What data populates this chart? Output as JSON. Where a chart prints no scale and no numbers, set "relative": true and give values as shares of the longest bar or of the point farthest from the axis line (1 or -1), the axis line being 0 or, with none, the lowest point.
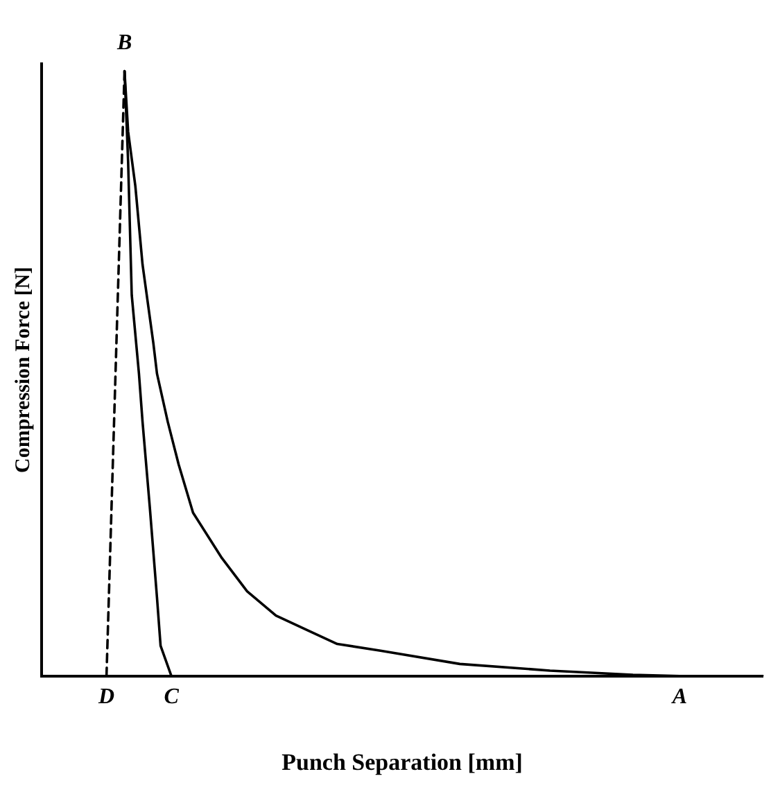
{
  "chart_data": {
    "type": "line",
    "relative": true,
    "xlabel": "Punch Separation [mm]",
    "ylabel": "Compression Force [N]",
    "tick_labels": "x",
    "grid": false,
    "legend": false,
    "marker": "none",
    "categories": [
      null,
      null,
      null,
      null,
      null,
      null,
      null,
      null,
      null,
      null,
      null,
      null,
      null,
      null,
      null,
      null,
      null,
      null,
      "D",
      null,
      null,
      null,
      null,
      null,
      null,
      null,
      null,
      null,
      null,
      null,
      null,
      null,
      null,
      null,
      null,
      null,
      "C",
      null,
      null,
      null,
      null,
      null,
      null,
      null,
      null,
      null,
      null,
      null,
      null,
      null,
      null,
      null,
      null,
      null,
      null,
      null,
      null,
      null,
      null,
      null,
      null,
      null,
      null,
      null,
      null,
      null,
      null,
      null,
      null,
      null,
      null,
      null,
      null,
      null,
      null,
      null,
      null,
      null,
      null,
      null,
      null,
      null,
      null,
      null,
      null,
      null,
      null,
      null,
      null,
      null,
      null,
      null,
      null,
      null,
      null,
      null,
      null,
      null,
      null,
      null,
      null,
      null,
      null,
      null,
      null,
      null,
      null,
      null,
      null,
      null,
      null,
      null,
      null,
      null,
      null,
      null,
      null,
      null,
      null,
      null,
      null,
      null,
      null,
      null,
      null,
      null,
      null,
      null,
      null,
      null,
      null,
      null,
      null,
      null,
      null,
      null,
      null,
      null,
      null,
      null,
      null,
      null,
      null,
      null,
      null,
      null,
      null,
      null,
      null,
      null,
      null,
      null,
      null,
      null,
      null,
      null,
      null,
      null,
      null,
      null,
      null,
      null,
      null,
      null,
      null,
      null,
      null,
      null,
      null,
      null,
      null,
      null,
      null,
      null,
      null,
      null,
      null,
      "A",
      null,
      null,
      null,
      null,
      null,
      null,
      null,
      null,
      null,
      null,
      null,
      null,
      null,
      null,
      null,
      null,
      null,
      null,
      null,
      null,
      null,
      null,
      null
    ],
    "series": [
      {
        "color": "#000000",
        "line_style": "solid",
        "values": [
          null,
          null,
          null,
          null,
          null,
          null,
          null,
          null,
          null,
          null,
          null,
          null,
          null,
          null,
          null,
          null,
          null,
          null,
          null,
          null,
          null,
          null,
          null,
          1,
          0.9,
          null,
          0.81,
          null,
          0.68,
          null,
          null,
          0.55,
          0.5,
          null,
          null,
          0.42,
          null,
          null,
          0.35,
          null,
          null,
          null,
          0.27,
          null,
          null,
          null,
          null,
          null,
          null,
          null,
          0.195,
          null,
          null,
          null,
          null,
          null,
          null,
          0.14,
          null,
          null,
          null,
          null,
          null,
          null,
          null,
          0.1,
          null,
          null,
          null,
          null,
          null,
          null,
          null,
          null,
          0.075,
          null,
          null,
          null,
          null,
          null,
          null,
          null,
          0.053,
          null,
          null,
          null,
          null,
          null,
          null,
          null,
          null,
          null,
          null,
          null,
          0.042,
          null,
          null,
          null,
          null,
          null,
          null,
          null,
          null,
          null,
          null,
          null,
          null,
          null,
          null,
          null,
          null,
          null,
          null,
          null,
          null,
          null,
          0.02,
          null,
          null,
          null,
          null,
          null,
          null,
          null,
          null,
          null,
          null,
          null,
          null,
          null,
          null,
          null,
          null,
          null,
          null,
          null,
          null,
          null,
          null,
          null,
          null,
          0.009,
          null,
          null,
          null,
          null,
          null,
          null,
          null,
          null,
          null,
          null,
          null,
          null,
          null,
          null,
          null,
          null,
          null,
          null,
          null,
          null,
          null,
          null,
          0.002,
          null,
          null,
          null,
          null,
          null,
          null,
          null,
          null,
          null,
          null,
          null,
          null,
          0,
          null,
          null,
          null,
          null,
          null,
          null,
          null,
          null,
          null,
          null,
          null,
          null,
          null,
          null,
          null,
          null,
          null,
          null,
          null,
          null,
          null,
          null,
          0
        ]
      },
      {
        "color": "#000000",
        "line_style": "solid",
        "values": [
          null,
          null,
          null,
          null,
          null,
          null,
          null,
          null,
          null,
          null,
          null,
          null,
          null,
          null,
          null,
          null,
          null,
          null,
          null,
          null,
          null,
          null,
          null,
          1,
          0.85,
          0.63,
          null,
          0.5,
          0.42,
          null,
          0.28,
          null,
          0.13,
          0.05,
          null,
          null,
          0,
          null,
          null,
          null,
          null,
          null,
          null,
          null,
          null,
          null,
          null,
          null,
          null,
          null,
          null,
          null,
          null,
          null,
          null,
          null,
          null,
          null,
          null,
          null,
          null,
          null,
          null,
          null,
          null,
          null,
          null,
          null,
          null,
          null,
          null,
          null,
          null,
          null,
          null,
          null,
          null,
          null,
          null,
          null,
          null,
          null,
          null,
          null,
          null,
          null,
          null,
          null,
          null,
          null,
          null,
          null,
          null,
          null,
          null,
          null,
          null,
          null,
          null,
          null,
          null,
          null,
          null,
          null,
          null,
          null,
          null,
          null,
          null,
          null,
          null,
          null,
          null,
          null,
          null,
          null,
          null,
          null,
          null,
          null,
          null,
          null,
          null,
          null,
          null,
          null,
          null,
          null,
          null,
          null,
          null,
          null,
          null,
          null,
          null,
          null,
          null,
          null,
          null,
          null,
          null,
          null,
          null,
          null,
          null,
          null,
          null,
          null,
          null,
          null,
          null,
          null,
          null,
          null,
          null,
          null,
          null,
          null,
          null,
          null,
          null,
          null,
          null,
          null,
          null,
          null,
          null,
          null,
          null,
          null,
          null,
          null,
          null,
          null,
          null,
          null,
          null,
          null,
          null,
          null,
          null,
          null,
          null,
          null,
          null,
          null,
          null,
          null,
          null,
          null,
          null,
          null,
          null,
          null,
          null,
          null,
          null,
          null,
          null,
          null,
          null
        ]
      },
      {
        "color": "#000000",
        "line_style": "dashed",
        "values": [
          null,
          null,
          null,
          null,
          null,
          null,
          null,
          null,
          null,
          null,
          null,
          null,
          null,
          null,
          null,
          null,
          null,
          null,
          0,
          null,
          null,
          null,
          null,
          1,
          null,
          null,
          null,
          null,
          null,
          null,
          null,
          null,
          null,
          null,
          null,
          null,
          null,
          null,
          null,
          null,
          null,
          null,
          null,
          null,
          null,
          null,
          null,
          null,
          null,
          null,
          null,
          null,
          null,
          null,
          null,
          null,
          null,
          null,
          null,
          null,
          null,
          null,
          null,
          null,
          null,
          null,
          null,
          null,
          null,
          null,
          null,
          null,
          null,
          null,
          null,
          null,
          null,
          null,
          null,
          null,
          null,
          null,
          null,
          null,
          null,
          null,
          null,
          null,
          null,
          null,
          null,
          null,
          null,
          null,
          null,
          null,
          null,
          null,
          null,
          null,
          null,
          null,
          null,
          null,
          null,
          null,
          null,
          null,
          null,
          null,
          null,
          null,
          null,
          null,
          null,
          null,
          null,
          null,
          null,
          null,
          null,
          null,
          null,
          null,
          null,
          null,
          null,
          null,
          null,
          null,
          null,
          null,
          null,
          null,
          null,
          null,
          null,
          null,
          null,
          null,
          null,
          null,
          null,
          null,
          null,
          null,
          null,
          null,
          null,
          null,
          null,
          null,
          null,
          null,
          null,
          null,
          null,
          null,
          null,
          null,
          null,
          null,
          null,
          null,
          null,
          null,
          null,
          null,
          null,
          null,
          null,
          null,
          null,
          null,
          null,
          null,
          null,
          null,
          null,
          null,
          null,
          null,
          null,
          null,
          null,
          null,
          null,
          null,
          null,
          null,
          null,
          null,
          null,
          null,
          null,
          null,
          null,
          null,
          null,
          null,
          null
        ]
      }
    ],
    "annotations": [
      "B"
    ]
  }
}
